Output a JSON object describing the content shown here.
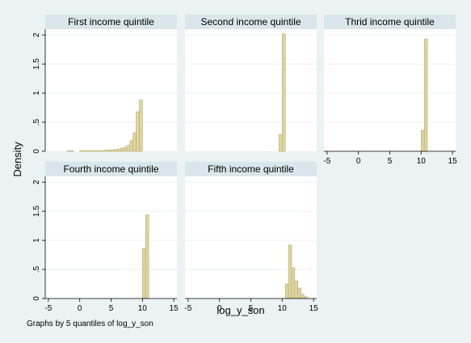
{
  "chart_data": {
    "type": "bar",
    "xlabel": "log_y_son",
    "ylabel": "Density",
    "note": "Graphs by 5 quantiles of log_y_son",
    "x_ticks": [
      -5,
      0,
      5,
      10,
      15
    ],
    "y_ticks": [
      0,
      0.5,
      1,
      1.5,
      2
    ],
    "y_tick_labels": [
      "0",
      ".5",
      "1",
      "1.5",
      "2"
    ],
    "xlim": [
      -5.5,
      15.5
    ],
    "ylim": [
      0,
      2.1
    ],
    "bin_width": 0.5,
    "bar_color": "#dfd5a0",
    "bar_edge": "#b7ab6d",
    "panels": [
      {
        "title": "First income quintile",
        "bins": [
          {
            "x": -2.0,
            "y": 0.01
          },
          {
            "x": -1.5,
            "y": 0.01
          },
          {
            "x": 0.0,
            "y": 0.01
          },
          {
            "x": 0.5,
            "y": 0.01
          },
          {
            "x": 1.0,
            "y": 0.01
          },
          {
            "x": 1.5,
            "y": 0.01
          },
          {
            "x": 2.0,
            "y": 0.01
          },
          {
            "x": 2.5,
            "y": 0.01
          },
          {
            "x": 3.0,
            "y": 0.01
          },
          {
            "x": 3.5,
            "y": 0.01
          },
          {
            "x": 4.0,
            "y": 0.02
          },
          {
            "x": 4.5,
            "y": 0.02
          },
          {
            "x": 5.0,
            "y": 0.02
          },
          {
            "x": 5.5,
            "y": 0.03
          },
          {
            "x": 6.0,
            "y": 0.04
          },
          {
            "x": 6.5,
            "y": 0.05
          },
          {
            "x": 7.0,
            "y": 0.07
          },
          {
            "x": 7.5,
            "y": 0.1
          },
          {
            "x": 8.0,
            "y": 0.18
          },
          {
            "x": 8.5,
            "y": 0.32
          },
          {
            "x": 9.0,
            "y": 0.68
          },
          {
            "x": 9.5,
            "y": 0.88
          }
        ]
      },
      {
        "title": "Second income quintile",
        "bins": [
          {
            "x": 9.5,
            "y": 0.29
          },
          {
            "x": 10.0,
            "y": 2.02
          }
        ]
      },
      {
        "title": "Thrid income quintile",
        "bins": [
          {
            "x": 10.0,
            "y": 0.36
          },
          {
            "x": 10.5,
            "y": 1.93
          }
        ]
      },
      {
        "title": "Fourth income quintile",
        "bins": [
          {
            "x": 10.0,
            "y": 0.86
          },
          {
            "x": 10.5,
            "y": 1.44
          }
        ]
      },
      {
        "title": "Fifth income quintile",
        "bins": [
          {
            "x": 10.5,
            "y": 0.25
          },
          {
            "x": 11.0,
            "y": 0.92
          },
          {
            "x": 11.5,
            "y": 0.53
          },
          {
            "x": 12.0,
            "y": 0.3
          },
          {
            "x": 12.5,
            "y": 0.18
          },
          {
            "x": 13.0,
            "y": 0.07
          },
          {
            "x": 13.5,
            "y": 0.03
          }
        ]
      }
    ]
  }
}
